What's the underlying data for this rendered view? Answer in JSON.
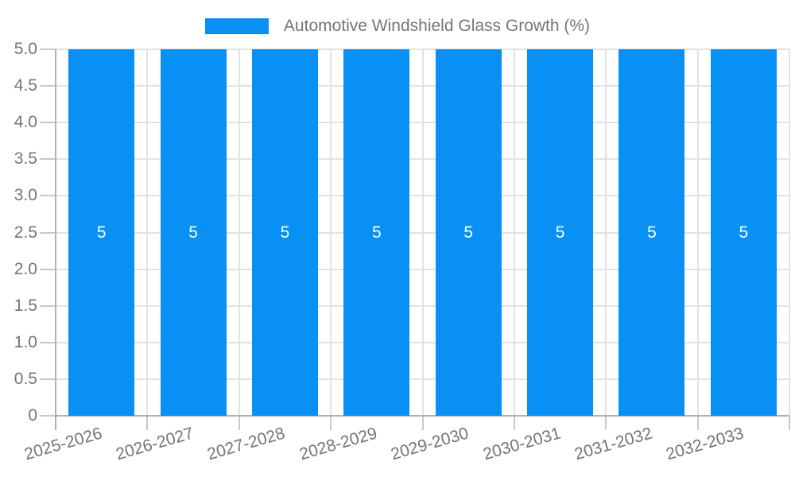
{
  "legend": {
    "label": "Automotive Windshield Glass Growth (%)"
  },
  "chart_data": {
    "type": "bar",
    "title": "Automotive Windshield Glass Growth (%)",
    "categories": [
      "2025-2026",
      "2026-2027",
      "2027-2028",
      "2028-2029",
      "2029-2030",
      "2030-2031",
      "2031-2032",
      "2032-2033"
    ],
    "values": [
      5,
      5,
      5,
      5,
      5,
      5,
      5,
      5
    ],
    "bar_value_labels": [
      "5",
      "5",
      "5",
      "5",
      "5",
      "5",
      "5",
      "5"
    ],
    "xlabel": "",
    "ylabel": "",
    "ylim": [
      0,
      5
    ],
    "ytick_step": 0.5,
    "ytick_labels": [
      "5.0",
      "4.5",
      "4.0",
      "3.5",
      "3.0",
      "2.5",
      "2.0",
      "1.5",
      "1.0",
      "0.5",
      "0"
    ],
    "grid": true,
    "legend_position": "top-center",
    "colors": {
      "bar": "#0990F4",
      "bar_value_label": "#ffffff",
      "grid": "#e2e2e2",
      "axis": "#b0b0b0",
      "tick": "#c9c9c9",
      "text": "#757575",
      "background": "#ffffff"
    }
  }
}
